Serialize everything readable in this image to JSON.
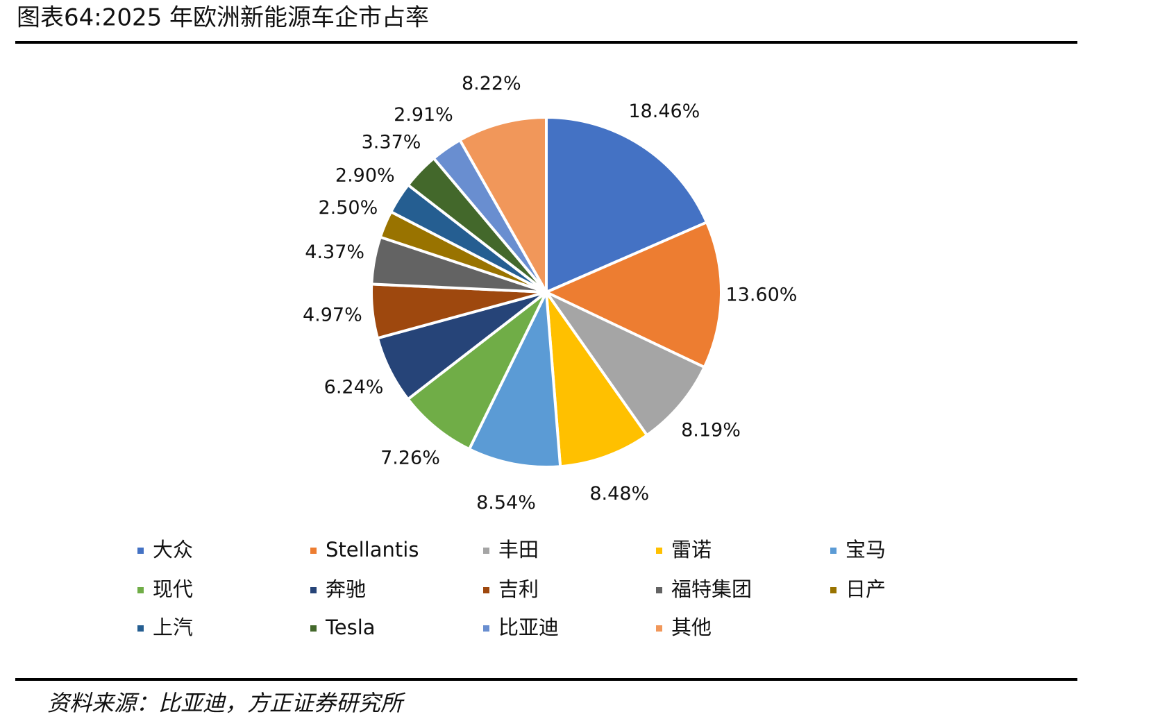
{
  "chart_data": {
    "type": "pie",
    "title": "图表64:2025 年欧洲新能源车企市占率",
    "source": "资料来源：比亚迪，方正证券研究所",
    "categories": [
      "大众",
      "Stellantis",
      "丰田",
      "雷诺",
      "宝马",
      "现代",
      "奔驰",
      "吉利",
      "福特集团",
      "日产",
      "上汽",
      "Tesla",
      "比亚迪",
      "其他"
    ],
    "values": [
      18.46,
      13.6,
      8.19,
      8.48,
      8.54,
      7.26,
      6.24,
      4.97,
      4.37,
      2.5,
      2.9,
      3.37,
      2.91,
      8.22
    ],
    "value_labels": [
      "18.46%",
      "13.60%",
      "8.19%",
      "8.48%",
      "8.54%",
      "7.26%",
      "6.24%",
      "4.97%",
      "4.37%",
      "2.50%",
      "2.90%",
      "3.37%",
      "2.91%",
      "8.22%"
    ],
    "colors": [
      "#4472c4",
      "#ed7d31",
      "#a5a5a5",
      "#ffc000",
      "#5b9bd5",
      "#70ad47",
      "#264478",
      "#9e480e",
      "#636363",
      "#997300",
      "#255e91",
      "#43682b",
      "#698ed0",
      "#f1975a"
    ],
    "legend": "bottom"
  }
}
